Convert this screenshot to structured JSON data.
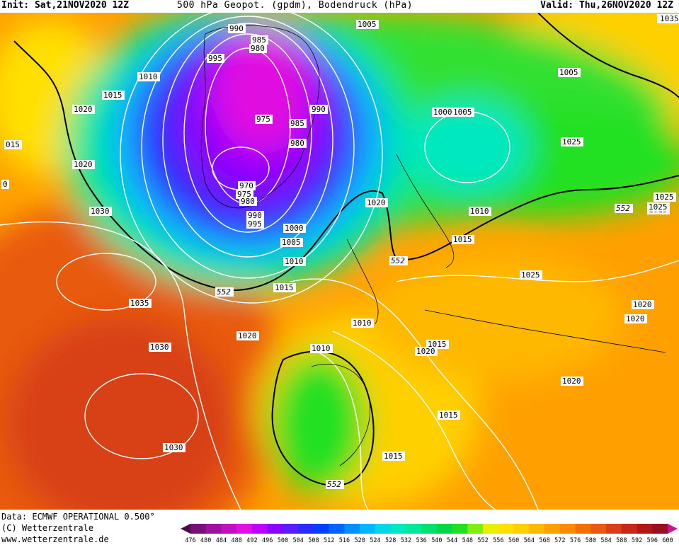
{
  "header": {
    "init": "Init: Sat,21NOV2020 12Z",
    "title": "500 hPa Geopot. (gpdm), Bodendruck (hPa)",
    "valid": "Valid: Thu,26NOV2020 12Z"
  },
  "footer": {
    "data_source": "Data: ECMWF OPERATIONAL 0.500°",
    "copyright": "(C) Wetterzentrale",
    "website": "www.wetterzentrale.de"
  },
  "colorbar": {
    "labels": [
      "476",
      "480",
      "484",
      "488",
      "492",
      "496",
      "500",
      "504",
      "508",
      "512",
      "516",
      "520",
      "524",
      "528",
      "532",
      "536",
      "540",
      "544",
      "548",
      "552",
      "556",
      "560",
      "564",
      "568",
      "572",
      "576",
      "580",
      "584",
      "588",
      "592",
      "596",
      "600"
    ],
    "colors": [
      "#4b0a4b",
      "#7a0f7a",
      "#a010a0",
      "#c010c0",
      "#e010e0",
      "#c000ff",
      "#8a00ff",
      "#5a1cff",
      "#2a2aff",
      "#0040ff",
      "#0064ff",
      "#0090ff",
      "#00b8ff",
      "#00d8e8",
      "#00e8c0",
      "#00e898",
      "#00e070",
      "#00d848",
      "#20e020",
      "#80ee10",
      "#e8f000",
      "#ffe000",
      "#ffd000",
      "#ffb800",
      "#ffa000",
      "#ff8a00",
      "#f07000",
      "#e85a10",
      "#d84018",
      "#c82818",
      "#b01818",
      "#981020",
      "#d01090"
    ]
  },
  "map_labels": {
    "isobars": [
      {
        "text": "990"
      },
      {
        "text": "985"
      },
      {
        "text": "980"
      },
      {
        "text": "995"
      },
      {
        "text": "1005"
      },
      {
        "text": "1010"
      },
      {
        "text": "1015"
      },
      {
        "text": "1020"
      },
      {
        "text": "1025"
      },
      {
        "text": "975"
      },
      {
        "text": "990"
      },
      {
        "text": "985"
      },
      {
        "text": "980"
      },
      {
        "text": "975"
      },
      {
        "text": "970"
      },
      {
        "text": "980"
      },
      {
        "text": "990"
      },
      {
        "text": "995"
      },
      {
        "text": "1000"
      },
      {
        "text": "1005"
      },
      {
        "text": "1010"
      },
      {
        "text": "1015"
      },
      {
        "text": "1020"
      },
      {
        "text": "1030"
      },
      {
        "text": "1035"
      },
      {
        "text": "1030"
      },
      {
        "text": "1030"
      },
      {
        "text": "1020"
      },
      {
        "text": "1015"
      },
      {
        "text": "1010"
      },
      {
        "text": "1020"
      },
      {
        "text": "1015"
      },
      {
        "text": "1010"
      },
      {
        "text": "1005"
      },
      {
        "text": "1000"
      },
      {
        "text": "1005"
      },
      {
        "text": "1010"
      },
      {
        "text": "1015"
      },
      {
        "text": "1020"
      },
      {
        "text": "1025"
      },
      {
        "text": "1035"
      },
      {
        "text": "1025"
      },
      {
        "text": "1025"
      },
      {
        "text": "1025"
      },
      {
        "text": "1020"
      },
      {
        "text": "1015"
      },
      {
        "text": "1020"
      },
      {
        "text": "1020"
      },
      {
        "text": "1015"
      },
      {
        "text": "015"
      },
      {
        "text": "0"
      }
    ],
    "geopot": [
      {
        "text": "552"
      },
      {
        "text": "552"
      },
      {
        "text": "552"
      },
      {
        "text": "552"
      }
    ]
  }
}
